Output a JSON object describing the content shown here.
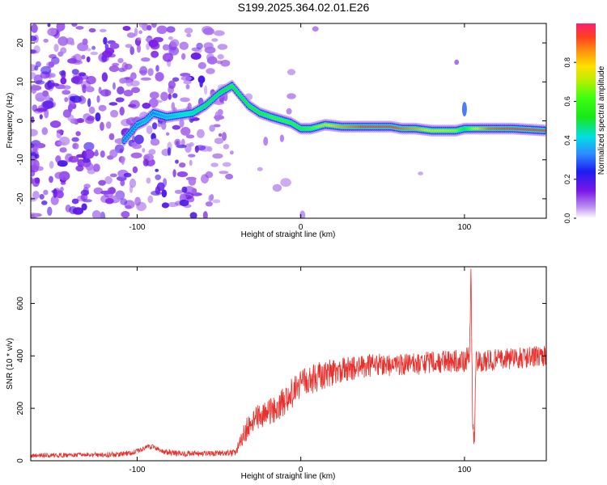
{
  "figure": {
    "title": "S199.2025.364.02.01.E26"
  },
  "colors": {
    "snr_line": "#e8302c",
    "spectrogram_low": "#9b62e8",
    "spectrogram_high": "#ff2060"
  },
  "chart_data": [
    {
      "id": "spectrogram",
      "type": "heatmap",
      "title": "",
      "xlabel": "Height of straight line (km)",
      "ylabel": "Frequency (Hz)",
      "xlim": [
        -165,
        150
      ],
      "ylim": [
        -25,
        25
      ],
      "xticks": [
        -100,
        0,
        100
      ],
      "xtick_labels": [
        "-100",
        "0",
        "100"
      ],
      "yticks": [
        -20,
        -10,
        0,
        10,
        20
      ],
      "ytick_labels": [
        "-20",
        "-10",
        "0",
        "10",
        "20"
      ],
      "colorbar": {
        "label": "Normalized spectral amplitude",
        "range": [
          0,
          1
        ],
        "ticks": [
          0.0,
          0.2,
          0.4,
          0.6,
          0.8
        ],
        "tick_labels": [
          "0.0",
          "0.2",
          "0.4",
          "0.6",
          "0.8"
        ]
      },
      "ridge": {
        "x": [
          -108,
          -100,
          -95,
          -90,
          -82,
          -66,
          -58,
          -50,
          -42,
          -38,
          -32,
          -25,
          -18,
          -10,
          -6,
          0,
          6,
          15,
          25,
          40,
          55,
          62,
          70,
          80,
          85,
          95,
          100,
          106,
          115,
          130,
          150
        ],
        "freq": [
          -5,
          -1,
          0,
          2,
          1,
          2,
          4,
          7,
          9,
          7,
          4,
          2,
          1,
          0,
          -0.5,
          -2,
          -2,
          -1,
          -1.5,
          -1.5,
          -1.5,
          -2,
          -2,
          -2.5,
          -2.5,
          -2.5,
          -2,
          -2,
          -2,
          -2,
          -2.5
        ],
        "amplitude": [
          0.3,
          0.3,
          0.35,
          0.3,
          0.35,
          0.45,
          0.5,
          0.5,
          0.55,
          0.5,
          0.55,
          0.55,
          0.6,
          0.6,
          0.6,
          0.55,
          0.6,
          0.75,
          0.85,
          0.95,
          0.95,
          0.9,
          0.85,
          0.75,
          0.75,
          0.7,
          0.5,
          0.75,
          0.9,
          0.95,
          0.95
        ]
      }
    },
    {
      "id": "snr",
      "type": "line",
      "title": "",
      "xlabel": "Height of straight line (km)",
      "ylabel": "SNR (10 * v/v)",
      "xlim": [
        -165,
        150
      ],
      "ylim": [
        0,
        740
      ],
      "xticks": [
        -100,
        0,
        100
      ],
      "xtick_labels": [
        "-100",
        "0",
        "100"
      ],
      "yticks": [
        0,
        200,
        400,
        600
      ],
      "ytick_labels": [
        "0",
        "200",
        "400",
        "600"
      ],
      "series": [
        {
          "name": "SNR",
          "trend": {
            "x": [
              -165,
              -130,
              -110,
              -100,
              -95,
              -90,
              -85,
              -75,
              -60,
              -50,
              -40,
              -34,
              -30,
              -25,
              -20,
              -15,
              -10,
              -5,
              0,
              10,
              20,
              30,
              40,
              50,
              60,
              70,
              80,
              90,
              100,
              103,
              104,
              105,
              106,
              107,
              110,
              120,
              130,
              140,
              150
            ],
            "y": [
              20,
              22,
              25,
              35,
              50,
              55,
              35,
              28,
              26,
              28,
              30,
              110,
              150,
              170,
              180,
              200,
              230,
              260,
              290,
              320,
              340,
              350,
              360,
              370,
              360,
              370,
              375,
              380,
              380,
              400,
              720,
              150,
              80,
              380,
              380,
              385,
              390,
              395,
              400
            ]
          },
          "noise": {
            "x": [
              -165,
              -40,
              -34,
              0,
              40,
              150
            ],
            "amplitude": [
              8,
              12,
              45,
              60,
              45,
              40
            ]
          }
        }
      ]
    }
  ]
}
